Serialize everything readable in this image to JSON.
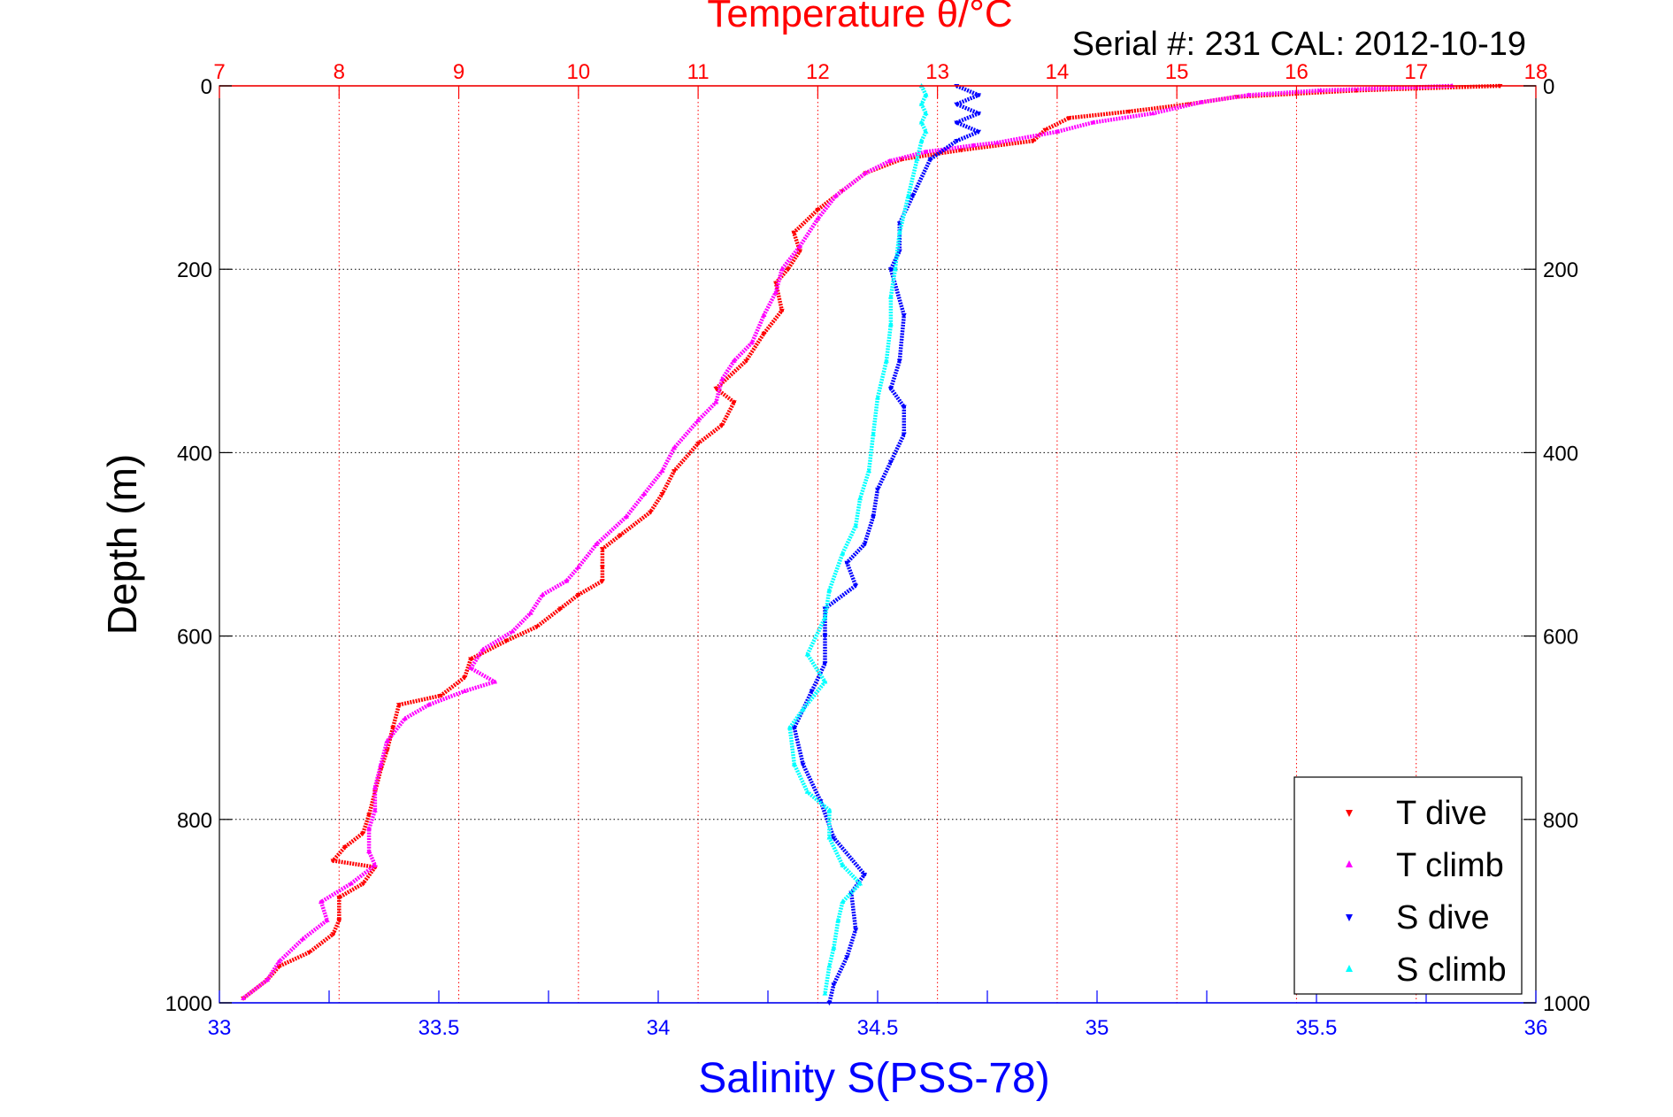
{
  "chart_data": {
    "type": "scatter",
    "title": "Temperature θ/°C",
    "subtitle": "Serial #: 231  CAL: 2012-10-19",
    "xlabel_bottom": "Salinity S(PSS-78)",
    "ylabel": "Depth (m)",
    "x_bottom": {
      "range": [
        33,
        36
      ],
      "ticks": [
        "33",
        "33.5",
        "34",
        "34.5",
        "35",
        "35.5",
        "36"
      ],
      "color": "#0000ff"
    },
    "x_top": {
      "range": [
        7,
        18
      ],
      "ticks": [
        "7",
        "8",
        "9",
        "10",
        "11",
        "12",
        "13",
        "14",
        "15",
        "16",
        "17",
        "18"
      ],
      "color": "#ff0000"
    },
    "y": {
      "range": [
        0,
        1000
      ],
      "reversed": true,
      "ticks": [
        "0",
        "200",
        "400",
        "600",
        "800",
        "1000"
      ]
    },
    "grid": true,
    "legend_position": "bottom-right",
    "series": [
      {
        "name": "T dive",
        "axis": "top",
        "color": "#ff0000",
        "marker": "triangle-down",
        "points": [
          [
            17.7,
            0
          ],
          [
            16.5,
            5
          ],
          [
            15.5,
            12
          ],
          [
            15.1,
            20
          ],
          [
            14.6,
            28
          ],
          [
            14.1,
            35
          ],
          [
            13.9,
            48
          ],
          [
            13.8,
            60
          ],
          [
            13.2,
            70
          ],
          [
            12.7,
            80
          ],
          [
            12.4,
            95
          ],
          [
            12.2,
            115
          ],
          [
            12.0,
            135
          ],
          [
            11.8,
            160
          ],
          [
            11.85,
            180
          ],
          [
            11.75,
            200
          ],
          [
            11.65,
            215
          ],
          [
            11.7,
            245
          ],
          [
            11.55,
            270
          ],
          [
            11.4,
            300
          ],
          [
            11.15,
            330
          ],
          [
            11.3,
            345
          ],
          [
            11.2,
            370
          ],
          [
            11.0,
            390
          ],
          [
            10.8,
            420
          ],
          [
            10.7,
            445
          ],
          [
            10.6,
            465
          ],
          [
            10.35,
            490
          ],
          [
            10.2,
            505
          ],
          [
            10.2,
            525
          ],
          [
            10.2,
            540
          ],
          [
            10.0,
            555
          ],
          [
            9.85,
            570
          ],
          [
            9.65,
            590
          ],
          [
            9.4,
            605
          ],
          [
            9.1,
            625
          ],
          [
            9.05,
            645
          ],
          [
            8.85,
            665
          ],
          [
            8.5,
            675
          ],
          [
            8.45,
            700
          ],
          [
            8.4,
            725
          ],
          [
            8.35,
            745
          ],
          [
            8.3,
            770
          ],
          [
            8.25,
            795
          ],
          [
            8.2,
            815
          ],
          [
            8.05,
            830
          ],
          [
            7.95,
            845
          ],
          [
            8.3,
            852
          ],
          [
            8.2,
            870
          ],
          [
            8.0,
            885
          ],
          [
            8.0,
            910
          ],
          [
            7.95,
            925
          ],
          [
            7.75,
            945
          ],
          [
            7.5,
            960
          ],
          [
            7.4,
            975
          ],
          [
            7.2,
            995
          ]
        ]
      },
      {
        "name": "T climb",
        "axis": "top",
        "color": "#ff00ff",
        "marker": "triangle-up",
        "points": [
          [
            17.3,
            0
          ],
          [
            16.2,
            5
          ],
          [
            15.6,
            10
          ],
          [
            15.2,
            18
          ],
          [
            14.8,
            30
          ],
          [
            14.3,
            40
          ],
          [
            14.0,
            50
          ],
          [
            13.5,
            62
          ],
          [
            13.3,
            65
          ],
          [
            12.9,
            72
          ],
          [
            12.6,
            82
          ],
          [
            12.4,
            95
          ],
          [
            12.15,
            120
          ],
          [
            12.0,
            145
          ],
          [
            11.85,
            175
          ],
          [
            11.7,
            200
          ],
          [
            11.65,
            225
          ],
          [
            11.55,
            250
          ],
          [
            11.45,
            280
          ],
          [
            11.3,
            300
          ],
          [
            11.2,
            320
          ],
          [
            11.15,
            345
          ],
          [
            11.0,
            365
          ],
          [
            10.8,
            395
          ],
          [
            10.7,
            420
          ],
          [
            10.55,
            445
          ],
          [
            10.4,
            470
          ],
          [
            10.15,
            500
          ],
          [
            10.0,
            525
          ],
          [
            9.9,
            540
          ],
          [
            9.7,
            555
          ],
          [
            9.6,
            575
          ],
          [
            9.45,
            595
          ],
          [
            9.2,
            615
          ],
          [
            9.1,
            635
          ],
          [
            9.3,
            650
          ],
          [
            9.05,
            660
          ],
          [
            8.75,
            675
          ],
          [
            8.55,
            690
          ],
          [
            8.4,
            715
          ],
          [
            8.35,
            740
          ],
          [
            8.3,
            765
          ],
          [
            8.3,
            790
          ],
          [
            8.25,
            810
          ],
          [
            8.25,
            835
          ],
          [
            8.3,
            850
          ],
          [
            8.1,
            870
          ],
          [
            7.85,
            890
          ],
          [
            7.9,
            910
          ],
          [
            7.7,
            930
          ],
          [
            7.5,
            955
          ],
          [
            7.4,
            975
          ],
          [
            7.2,
            995
          ]
        ]
      },
      {
        "name": "S dive",
        "axis": "bottom",
        "color": "#0000ff",
        "marker": "triangle-down",
        "points": [
          [
            34.68,
            0
          ],
          [
            34.73,
            10
          ],
          [
            34.68,
            20
          ],
          [
            34.73,
            30
          ],
          [
            34.68,
            40
          ],
          [
            34.73,
            50
          ],
          [
            34.68,
            60
          ],
          [
            34.62,
            80
          ],
          [
            34.58,
            120
          ],
          [
            34.55,
            150
          ],
          [
            34.55,
            180
          ],
          [
            34.53,
            200
          ],
          [
            34.56,
            250
          ],
          [
            34.55,
            300
          ],
          [
            34.53,
            330
          ],
          [
            34.56,
            350
          ],
          [
            34.56,
            380
          ],
          [
            34.53,
            410
          ],
          [
            34.5,
            440
          ],
          [
            34.49,
            470
          ],
          [
            34.47,
            500
          ],
          [
            34.43,
            520
          ],
          [
            34.45,
            545
          ],
          [
            34.38,
            570
          ],
          [
            34.38,
            600
          ],
          [
            34.38,
            630
          ],
          [
            34.35,
            660
          ],
          [
            34.31,
            700
          ],
          [
            34.33,
            740
          ],
          [
            34.37,
            780
          ],
          [
            34.4,
            820
          ],
          [
            34.47,
            860
          ],
          [
            34.44,
            880
          ],
          [
            34.45,
            920
          ],
          [
            34.43,
            950
          ],
          [
            34.4,
            980
          ],
          [
            34.39,
            1000
          ]
        ]
      },
      {
        "name": "S climb",
        "axis": "bottom",
        "color": "#00ffff",
        "marker": "triangle-up",
        "points": [
          [
            34.6,
            0
          ],
          [
            34.61,
            10
          ],
          [
            34.6,
            20
          ],
          [
            34.61,
            30
          ],
          [
            34.6,
            40
          ],
          [
            34.61,
            50
          ],
          [
            34.6,
            60
          ],
          [
            34.59,
            80
          ],
          [
            34.57,
            120
          ],
          [
            34.55,
            160
          ],
          [
            34.54,
            200
          ],
          [
            34.53,
            230
          ],
          [
            34.53,
            260
          ],
          [
            34.52,
            300
          ],
          [
            34.5,
            340
          ],
          [
            34.49,
            380
          ],
          [
            34.48,
            420
          ],
          [
            34.46,
            450
          ],
          [
            34.45,
            480
          ],
          [
            34.42,
            510
          ],
          [
            34.39,
            550
          ],
          [
            34.38,
            580
          ],
          [
            34.34,
            620
          ],
          [
            34.38,
            650
          ],
          [
            34.33,
            680
          ],
          [
            34.3,
            700
          ],
          [
            34.31,
            740
          ],
          [
            34.34,
            770
          ],
          [
            34.39,
            790
          ],
          [
            34.39,
            820
          ],
          [
            34.42,
            850
          ],
          [
            34.46,
            870
          ],
          [
            34.42,
            890
          ],
          [
            34.41,
            910
          ],
          [
            34.4,
            940
          ],
          [
            34.39,
            960
          ],
          [
            34.38,
            990
          ]
        ]
      }
    ]
  }
}
